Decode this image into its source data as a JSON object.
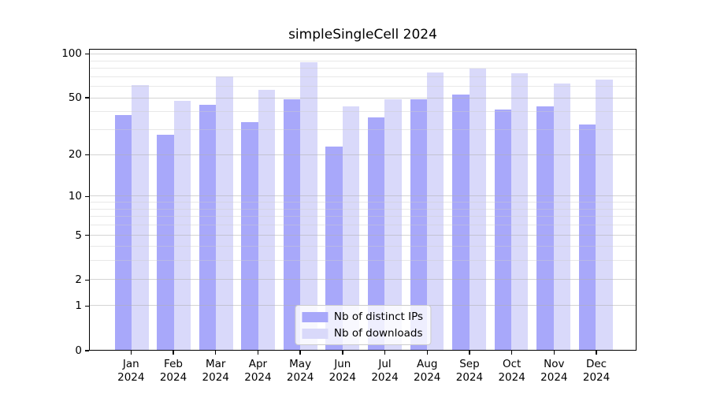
{
  "chart_data": {
    "type": "bar",
    "title": "simpleSingleCell 2024",
    "categories": [
      "Jan",
      "Feb",
      "Mar",
      "Apr",
      "May",
      "Jun",
      "Jul",
      "Aug",
      "Sep",
      "Oct",
      "Nov",
      "Dec"
    ],
    "year_label": "2024",
    "series": [
      {
        "name": "Nb of distinct IPs",
        "color": "#a8a8fa",
        "values": [
          38,
          28,
          45,
          34,
          49,
          23,
          37,
          49,
          53,
          42,
          44,
          33
        ]
      },
      {
        "name": "Nb of downloads",
        "color": "#d9d9fa",
        "values": [
          62,
          48,
          71,
          57,
          88,
          44,
          49,
          75,
          80,
          74,
          63,
          67
        ]
      }
    ],
    "xlabel": "",
    "ylabel": "",
    "yscale": "log1p",
    "ylim": [
      0,
      108
    ],
    "yticks": [
      0,
      1,
      2,
      5,
      10,
      20,
      50,
      100
    ],
    "minor_gridlines": [
      3,
      4,
      6,
      7,
      8,
      9,
      30,
      40,
      60,
      70,
      80,
      90
    ],
    "grid": true,
    "legend_position": "lower center",
    "background_color": "#ffffff",
    "axis_color": "#000000"
  }
}
